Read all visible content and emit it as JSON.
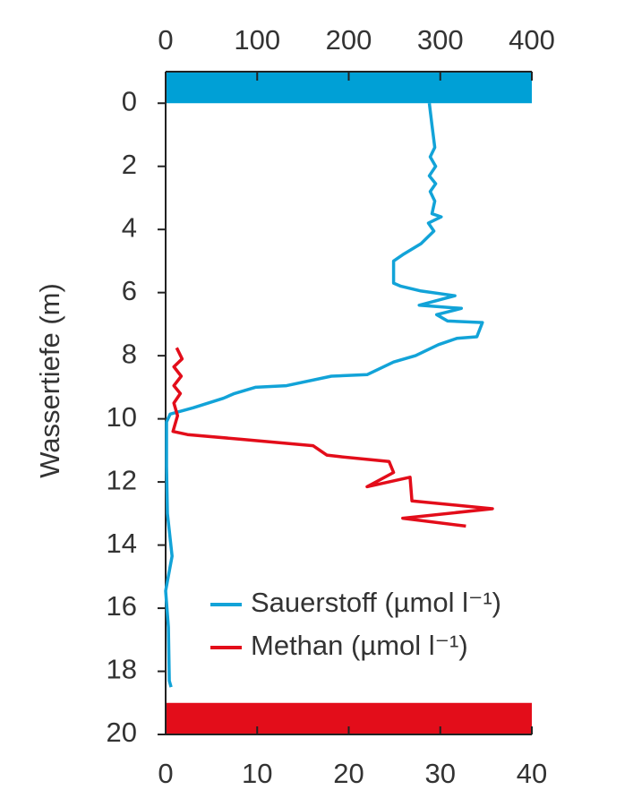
{
  "chart_data": {
    "type": "profile",
    "y_label": "Wassertiefe (m)",
    "ylim": [
      -1,
      20
    ],
    "yticks": [
      0,
      2,
      4,
      6,
      8,
      10,
      12,
      14,
      16,
      18,
      20
    ],
    "xlim": [
      0,
      40
    ],
    "xticks": [
      0,
      10,
      20,
      30,
      40
    ],
    "x2lim": [
      0,
      400
    ],
    "x2ticks": [
      0,
      100,
      200,
      300,
      400
    ],
    "bands": [
      {
        "from": -1,
        "to": 0,
        "color": "#00a0d6"
      },
      {
        "from": 19,
        "to": 20,
        "color": "#e30d1a"
      }
    ],
    "legend": "bottom-right",
    "series": [
      {
        "name": "Sauerstoff (µmol l⁻¹)",
        "color": "#12a3d8",
        "axis": "x2",
        "depth": [
          0,
          0.7,
          1.4,
          1.7,
          2,
          2.3,
          2.55,
          2.8,
          3.1,
          3.5,
          3.6,
          3.8,
          4.05,
          4.45,
          4.8,
          5.0,
          5.7,
          5.8,
          5.95,
          6.1,
          6.4,
          6.5,
          6.7,
          6.9,
          6.95,
          7.4,
          7.45,
          7.65,
          8.0,
          8.2,
          8.6,
          8.65,
          8.95,
          9.0,
          9.2,
          9.35,
          9.65,
          9.85,
          10.1,
          11.5,
          13,
          14.35,
          15.45,
          16.6,
          18.3,
          18.5
        ],
        "values": [
          288,
          291,
          294,
          289,
          295,
          288,
          295,
          289,
          294,
          291,
          301,
          287,
          293,
          279,
          259,
          249,
          249,
          257,
          279,
          316,
          277,
          323,
          296,
          308,
          346,
          340,
          318,
          298,
          273,
          249,
          220,
          181,
          132,
          98,
          75,
          63,
          30,
          5,
          1,
          1,
          2,
          7,
          0,
          3,
          4,
          6
        ]
      },
      {
        "name": "Methan (µmol l⁻¹)",
        "color": "#e30d1a",
        "axis": "x",
        "depth": [
          7.75,
          8.1,
          8.35,
          8.65,
          8.95,
          9.2,
          9.5,
          9.9,
          10.4,
          10.5,
          10.65,
          10.85,
          11.15,
          11.2,
          11.35,
          11.7,
          12.15,
          11.85,
          12.6,
          12.85,
          13.15,
          13.4
        ],
        "values": [
          1.2,
          1.8,
          0.9,
          1.7,
          0.9,
          1.6,
          0.9,
          1.3,
          0.8,
          2.4,
          8.3,
          16.1,
          17.6,
          19.1,
          24.4,
          24.9,
          22,
          26.7,
          26.9,
          35.7,
          25.9,
          32.8
        ]
      }
    ]
  }
}
